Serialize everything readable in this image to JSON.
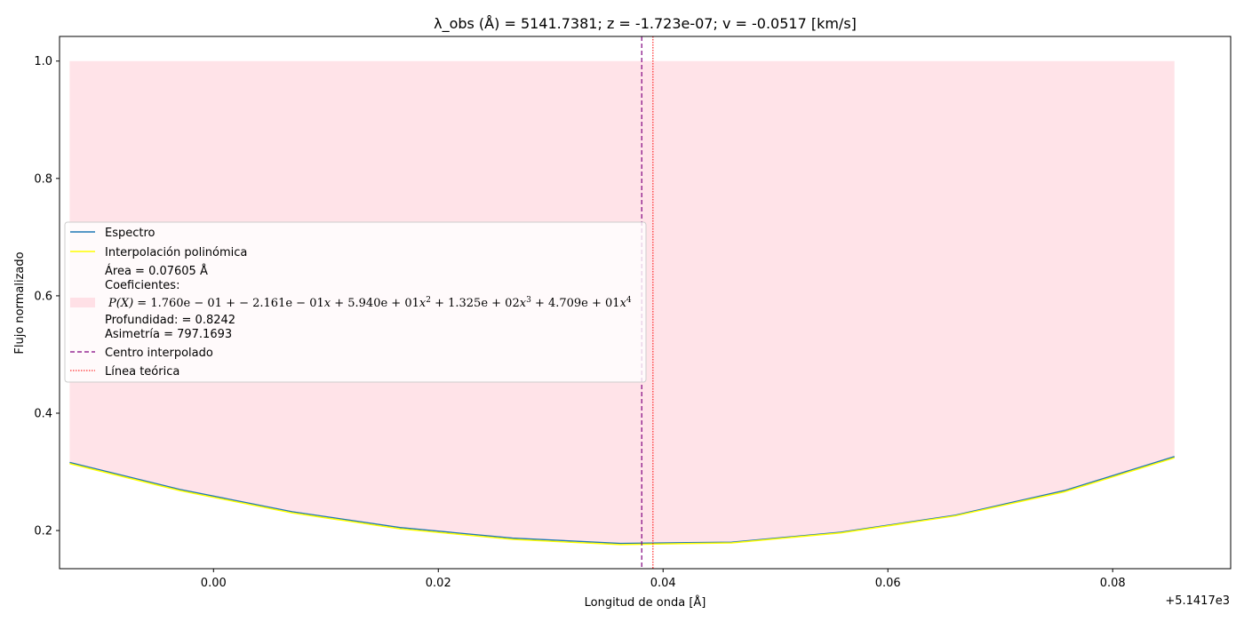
{
  "chart_data": {
    "type": "line",
    "title": "λ_obs (Å) = 5141.7381; z = -1.723e-07; v = -0.0517 [km/s]",
    "xlabel": "Longitud de onda [Å]",
    "ylabel": "Flujo normalizado",
    "x_offset_label": "+5.1417e3",
    "x_offset": 5141.7,
    "xlim": [
      -0.0137,
      0.0905
    ],
    "ylim": [
      0.135,
      1.042
    ],
    "x_ticks": [
      0.0,
      0.02,
      0.04,
      0.06,
      0.08
    ],
    "x_tick_labels": [
      "0.00",
      "0.02",
      "0.04",
      "0.06",
      "0.08"
    ],
    "y_ticks": [
      0.2,
      0.4,
      0.6,
      0.8,
      1.0
    ],
    "y_tick_labels": [
      "0.2",
      "0.4",
      "0.6",
      "0.8",
      "1.0"
    ],
    "legend_location": "center-left",
    "series": [
      {
        "name": "Espectro",
        "color": "#1f77b4",
        "x": [
          -0.0128,
          -0.003,
          0.007,
          0.0166,
          0.0266,
          0.0362,
          0.0461,
          0.0558,
          0.066,
          0.0757,
          0.0855
        ],
        "y": [
          0.316,
          0.27,
          0.232,
          0.205,
          0.187,
          0.178,
          0.18,
          0.197,
          0.226,
          0.268,
          0.326
        ]
      },
      {
        "name": "Interpolación polinómica",
        "color": "#ffff00",
        "x": [
          -0.0128,
          -0.003,
          0.007,
          0.0166,
          0.0266,
          0.0362,
          0.0461,
          0.0558,
          0.066,
          0.0757,
          0.0855
        ],
        "y": [
          0.314,
          0.268,
          0.23,
          0.203,
          0.185,
          0.176,
          0.179,
          0.196,
          0.225,
          0.266,
          0.324
        ]
      }
    ],
    "fill": {
      "color": "#ffc0cb",
      "opacity": 0.45,
      "upper": 1.0,
      "x_start": -0.0128,
      "x_end": 0.0855
    },
    "vlines": [
      {
        "name": "Centro interpolado",
        "x": 0.0381,
        "color": "#800080",
        "style": "dashed"
      },
      {
        "name": "Línea teórica",
        "x": 0.0391,
        "color": "#ff0000",
        "style": "dotted"
      }
    ],
    "legend": {
      "espectro": "Espectro",
      "interp": "Interpolación polinómica",
      "area": "Área = 0.07605 Å",
      "coef_title": "Coeficientes:",
      "poly_lhs": "P(X)",
      "poly_terms": [
        {
          "sign": "=",
          "coef": "1.760e − 01",
          "power": ""
        },
        {
          "sign": "+ −",
          "coef": "2.161e − 01",
          "power": "1"
        },
        {
          "sign": "+",
          "coef": "5.940e + 01",
          "power": "2"
        },
        {
          "sign": "+",
          "coef": "1.325e + 02",
          "power": "3"
        },
        {
          "sign": "+",
          "coef": "4.709e + 01",
          "power": "4"
        }
      ],
      "depth": "Profundidad: = 0.8242",
      "asym": "Asimetría = 797.1693",
      "centro": "Centro interpolado",
      "teorica": "Línea teórica"
    }
  }
}
